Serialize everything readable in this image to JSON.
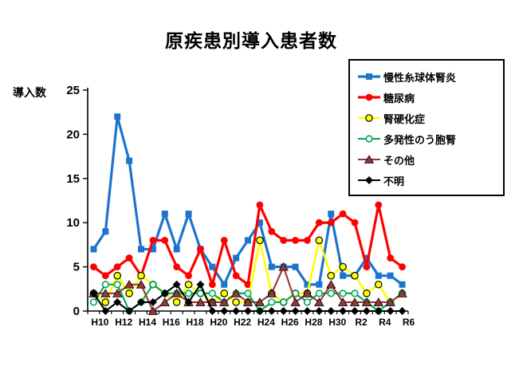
{
  "chart": {
    "title": "原疾患別導入患者数",
    "y_axis_title": "導入数",
    "background_color": "#ffffff",
    "axis_color": "#000000"
  },
  "chart_data": {
    "type": "line",
    "title": "原疾患別導入患者数",
    "ylabel": "導入数",
    "xlabel": "",
    "ylim": [
      0,
      25
    ],
    "y_ticks": [
      0,
      5,
      10,
      15,
      20,
      25
    ],
    "grid": false,
    "legend_position": "top-right",
    "categories": [
      "H10",
      "H11",
      "H12",
      "H13",
      "H14",
      "H15",
      "H16",
      "H17",
      "H18",
      "H19",
      "H20",
      "H21",
      "H22",
      "H23",
      "H24",
      "H25",
      "H26",
      "H27",
      "H28",
      "H29",
      "H30",
      "R1",
      "R2",
      "R3",
      "R4",
      "R5",
      "R6"
    ],
    "x_tick_labels_shown": [
      "H10",
      "H12",
      "H14",
      "H16",
      "H18",
      "H20",
      "H22",
      "H24",
      "H26",
      "H28",
      "H30",
      "R2",
      "R4",
      "R6"
    ],
    "series": [
      {
        "name": "慢性糸球体腎炎",
        "color": "#1B74CE",
        "marker": "square",
        "values": [
          7,
          9,
          22,
          17,
          7,
          7,
          11,
          7,
          11,
          7,
          5,
          3,
          6,
          8,
          10,
          5,
          5,
          5,
          3,
          3,
          11,
          4,
          4,
          6,
          4,
          4,
          3
        ]
      },
      {
        "name": "糖尿病",
        "color": "#FF0000",
        "marker": "circle",
        "values": [
          5,
          4,
          5,
          6,
          4,
          8,
          8,
          5,
          4,
          7,
          3,
          8,
          4,
          3,
          12,
          9,
          8,
          8,
          8,
          10,
          10,
          11,
          10,
          5,
          12,
          6,
          5
        ]
      },
      {
        "name": "腎硬化症",
        "color": "#FFFF00",
        "marker": "circle-outlined",
        "values": [
          2,
          1,
          4,
          2,
          4,
          3,
          2,
          1,
          3,
          2,
          1,
          2,
          1,
          1,
          8,
          2,
          1,
          2,
          2,
          8,
          4,
          5,
          4,
          2,
          3,
          1,
          2
        ]
      },
      {
        "name": "多発性のう胞腎",
        "color": "#00A651",
        "marker": "circle-open",
        "values": [
          1,
          3,
          3,
          0,
          1,
          3,
          2,
          2,
          2,
          2,
          2,
          1,
          2,
          2,
          0,
          1,
          1,
          2,
          1,
          2,
          2,
          2,
          2,
          1,
          0,
          1,
          2
        ]
      },
      {
        "name": "その他",
        "color": "#953735",
        "marker": "triangle",
        "values": [
          2,
          2,
          2,
          3,
          3,
          0,
          1,
          2,
          1,
          1,
          1,
          1,
          2,
          1,
          1,
          2,
          5,
          1,
          2,
          1,
          3,
          1,
          1,
          1,
          1,
          1,
          2
        ]
      },
      {
        "name": "不明",
        "color": "#000000",
        "marker": "diamond",
        "values": [
          2,
          0,
          1,
          0,
          1,
          1,
          2,
          3,
          1,
          3,
          0,
          0,
          0,
          0,
          0,
          0,
          0,
          0,
          0,
          0,
          0,
          0,
          0,
          0,
          0,
          0,
          0
        ]
      }
    ]
  }
}
